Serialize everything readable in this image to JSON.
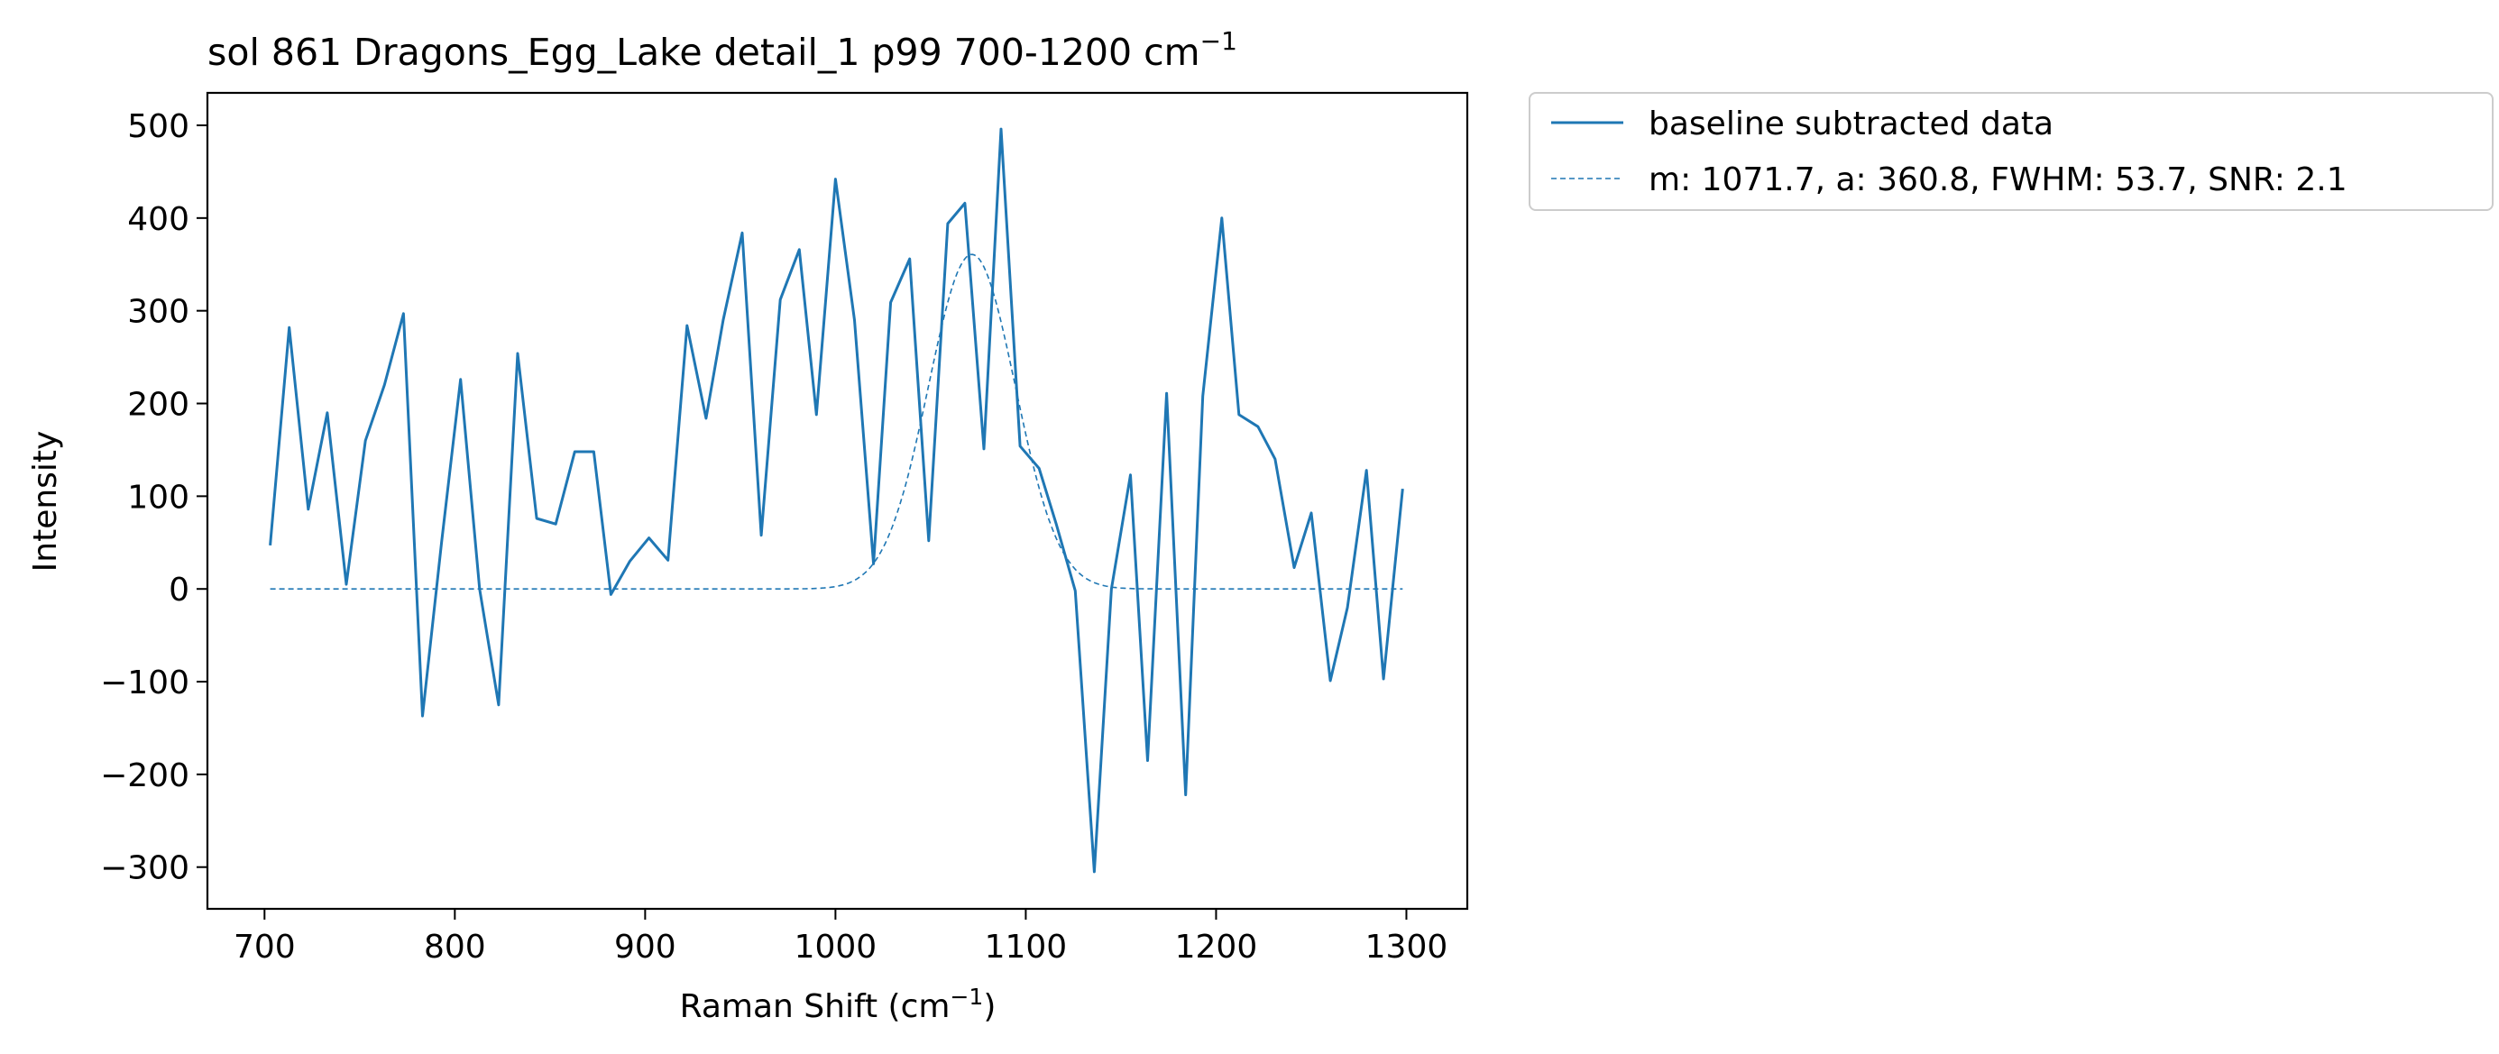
{
  "chart_data": {
    "type": "line",
    "title": "sol 861 Dragons_Egg_Lake detail_1 p99 700-1200 cm",
    "title_sup": "−1",
    "xlabel": "Raman Shift (cm",
    "xlabel_sup": "−1",
    "xlabel_tail": ")",
    "ylabel": "Intensity",
    "xlim": [
      670,
      1332
    ],
    "ylim": [
      -345,
      535
    ],
    "xticks": [
      700,
      800,
      900,
      1000,
      1100,
      1200,
      1300
    ],
    "yticks": [
      500,
      400,
      300,
      200,
      100,
      0,
      -100,
      -200,
      -300
    ],
    "ytick_labels": [
      "500",
      "400",
      "300",
      "200",
      "100",
      "0",
      "−100",
      "−200",
      "−300"
    ],
    "grid": false,
    "legend_position": "outside top-right",
    "series": [
      {
        "name": "baseline subtracted data",
        "style": "solid",
        "color": "#1f77b4",
        "x": [
          703,
          713,
          723,
          733,
          743,
          753,
          763,
          773,
          783,
          793,
          803,
          813,
          823,
          833,
          843,
          853,
          863,
          873,
          882,
          892,
          902,
          912,
          922,
          932,
          941,
          951,
          961,
          971,
          981,
          990,
          1000,
          1010,
          1020,
          1029,
          1039,
          1049,
          1059,
          1068,
          1078,
          1087,
          1097,
          1107,
          1116,
          1126,
          1136,
          1145,
          1155,
          1164,
          1174,
          1184,
          1193,
          1203,
          1212,
          1222,
          1231,
          1241,
          1250,
          1260,
          1269,
          1279,
          1288,
          1298
        ],
        "y": [
          47,
          282,
          86,
          190,
          5,
          160,
          220,
          297,
          -137,
          50,
          226,
          0,
          -125,
          254,
          76,
          70,
          148,
          148,
          -6,
          30,
          55,
          31,
          284,
          184,
          290,
          384,
          58,
          312,
          366,
          188,
          442,
          290,
          27,
          309,
          356,
          52,
          394,
          416,
          151,
          496,
          154,
          130,
          70,
          -2,
          -305,
          0,
          123,
          -185,
          211,
          -222,
          208,
          400,
          188,
          175,
          140,
          23,
          82,
          -99,
          -20,
          128,
          -97,
          108
        ]
      },
      {
        "name": "m: 1071.7, a: 360.8, FWHM: 53.7, SNR: 2.1",
        "style": "dashed",
        "color": "#1f77b4",
        "model": "gaussian",
        "center": 1071.7,
        "amplitude": 360.8,
        "fwhm": 53.7,
        "x_range": [
          703,
          1298
        ]
      }
    ]
  }
}
